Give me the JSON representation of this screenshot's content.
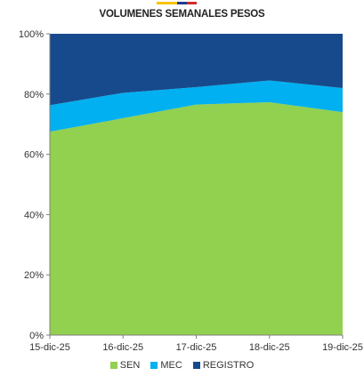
{
  "header": {
    "flag_colors": [
      "#f5c400",
      "#1f3c8c",
      "#d62828"
    ]
  },
  "chart_data": {
    "type": "area",
    "stacked_percent": true,
    "title": "VOLUMENES SEMANALES PESOS",
    "x": [
      "15-dic-25",
      "16-dic-25",
      "17-dic-25",
      "18-dic-25",
      "19-dic-25"
    ],
    "series": [
      {
        "name": "SEN",
        "color": "#92d050",
        "values": [
          67.5,
          72,
          76.5,
          77.3,
          74
        ]
      },
      {
        "name": "MEC",
        "color": "#00b0f0",
        "values": [
          8.8,
          8.4,
          5.8,
          7.2,
          8
        ]
      },
      {
        "name": "REGISTRO",
        "color": "#174a8c",
        "values": [
          23.7,
          19.6,
          17.7,
          15.5,
          18
        ]
      }
    ],
    "y_ticks": [
      "0%",
      "20%",
      "40%",
      "60%",
      "80%",
      "100%"
    ],
    "ylim": [
      0,
      100
    ],
    "grid": false,
    "legend_position": "bottom"
  }
}
